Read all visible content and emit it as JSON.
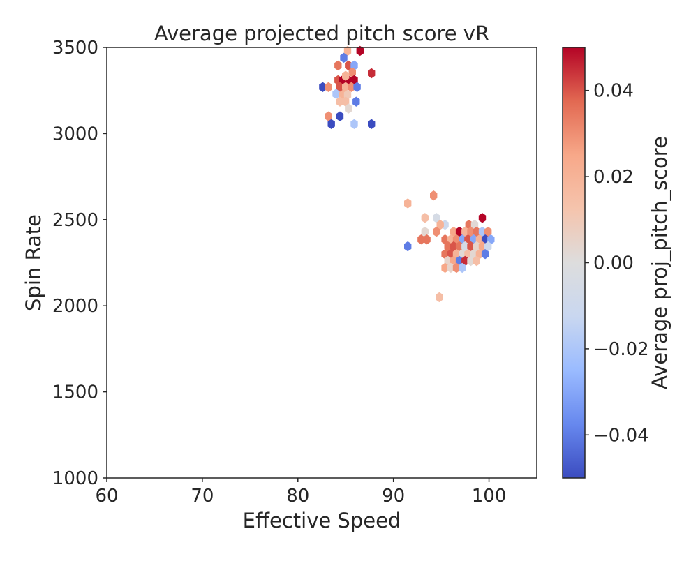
{
  "chart_data": {
    "type": "hexbin",
    "title": "Average projected pitch score vR",
    "xlabel": "Effective Speed",
    "ylabel": "Spin Rate",
    "xlim": [
      60,
      105
    ],
    "ylim": [
      1000,
      3500
    ],
    "xticks": [
      60,
      70,
      80,
      90,
      100
    ],
    "yticks": [
      1000,
      1500,
      2000,
      2500,
      3000,
      3500
    ],
    "grid": false,
    "colorbar": {
      "label": "Average proj_pitch_score",
      "colormap": "coolwarm",
      "range": [
        -0.05,
        0.05
      ],
      "ticks": [
        -0.04,
        -0.02,
        0.0,
        0.02,
        0.04
      ],
      "tick_labels": [
        "−0.04",
        "−0.02",
        "0.00",
        "0.02",
        "0.04"
      ],
      "colors": [
        "#3b4cc0",
        "#6788ee",
        "#9abbff",
        "#c9d7f0",
        "#dddddd",
        "#f5c4ad",
        "#f7a889",
        "#e26952",
        "#b40426"
      ]
    },
    "points": [
      {
        "x": 86.5,
        "y": 3480,
        "v": 0.05
      },
      {
        "x": 85.2,
        "y": 3480,
        "v": 0.02
      },
      {
        "x": 84.8,
        "y": 3440,
        "v": -0.04
      },
      {
        "x": 84.2,
        "y": 3395,
        "v": 0.035
      },
      {
        "x": 85.3,
        "y": 3395,
        "v": 0.04
      },
      {
        "x": 85.9,
        "y": 3395,
        "v": -0.03
      },
      {
        "x": 87.7,
        "y": 3350,
        "v": 0.045
      },
      {
        "x": 85.7,
        "y": 3355,
        "v": 0.03
      },
      {
        "x": 84.2,
        "y": 3310,
        "v": 0.04
      },
      {
        "x": 84.7,
        "y": 3310,
        "v": 0.05
      },
      {
        "x": 85.3,
        "y": 3310,
        "v": 0.05
      },
      {
        "x": 85.9,
        "y": 3310,
        "v": 0.05
      },
      {
        "x": 85.0,
        "y": 3335,
        "v": 0.02
      },
      {
        "x": 82.6,
        "y": 3270,
        "v": -0.05
      },
      {
        "x": 83.2,
        "y": 3270,
        "v": 0.03
      },
      {
        "x": 84.4,
        "y": 3270,
        "v": 0.04
      },
      {
        "x": 85.0,
        "y": 3270,
        "v": 0.02
      },
      {
        "x": 85.6,
        "y": 3270,
        "v": 0.03
      },
      {
        "x": 86.2,
        "y": 3270,
        "v": -0.04
      },
      {
        "x": 84.0,
        "y": 3230,
        "v": -0.02
      },
      {
        "x": 84.7,
        "y": 3225,
        "v": 0.02
      },
      {
        "x": 85.2,
        "y": 3225,
        "v": 0.01
      },
      {
        "x": 84.4,
        "y": 3185,
        "v": 0.015
      },
      {
        "x": 85.0,
        "y": 3185,
        "v": 0.015
      },
      {
        "x": 86.1,
        "y": 3185,
        "v": -0.04
      },
      {
        "x": 85.3,
        "y": 3145,
        "v": 0.003
      },
      {
        "x": 83.2,
        "y": 3100,
        "v": 0.03
      },
      {
        "x": 84.4,
        "y": 3100,
        "v": -0.05
      },
      {
        "x": 83.5,
        "y": 3055,
        "v": -0.05
      },
      {
        "x": 85.9,
        "y": 3055,
        "v": -0.02
      },
      {
        "x": 87.7,
        "y": 3055,
        "v": -0.05
      },
      {
        "x": 94.2,
        "y": 2640,
        "v": 0.03
      },
      {
        "x": 91.5,
        "y": 2595,
        "v": 0.02
      },
      {
        "x": 93.3,
        "y": 2510,
        "v": 0.015
      },
      {
        "x": 94.5,
        "y": 2510,
        "v": -0.005
      },
      {
        "x": 99.3,
        "y": 2510,
        "v": 0.05
      },
      {
        "x": 95.4,
        "y": 2470,
        "v": -0.01
      },
      {
        "x": 94.9,
        "y": 2470,
        "v": 0.02
      },
      {
        "x": 97.9,
        "y": 2470,
        "v": 0.035
      },
      {
        "x": 98.5,
        "y": 2470,
        "v": 0.002
      },
      {
        "x": 93.3,
        "y": 2430,
        "v": 0.003
      },
      {
        "x": 94.5,
        "y": 2430,
        "v": 0.03
      },
      {
        "x": 96.3,
        "y": 2430,
        "v": 0.025
      },
      {
        "x": 96.9,
        "y": 2430,
        "v": 0.05
      },
      {
        "x": 97.5,
        "y": 2430,
        "v": 0.02
      },
      {
        "x": 98.1,
        "y": 2430,
        "v": 0.03
      },
      {
        "x": 98.7,
        "y": 2430,
        "v": 0.035
      },
      {
        "x": 99.3,
        "y": 2430,
        "v": -0.02
      },
      {
        "x": 99.9,
        "y": 2430,
        "v": 0.03
      },
      {
        "x": 92.9,
        "y": 2385,
        "v": 0.035
      },
      {
        "x": 93.5,
        "y": 2385,
        "v": 0.035
      },
      {
        "x": 95.4,
        "y": 2385,
        "v": 0.035
      },
      {
        "x": 96.0,
        "y": 2385,
        "v": 0.02
      },
      {
        "x": 96.6,
        "y": 2385,
        "v": 0.03
      },
      {
        "x": 97.2,
        "y": 2385,
        "v": -0.03
      },
      {
        "x": 97.8,
        "y": 2385,
        "v": 0.04
      },
      {
        "x": 98.4,
        "y": 2385,
        "v": -0.03
      },
      {
        "x": 99.0,
        "y": 2385,
        "v": 0.02
      },
      {
        "x": 99.6,
        "y": 2385,
        "v": -0.05
      },
      {
        "x": 100.2,
        "y": 2385,
        "v": -0.03
      },
      {
        "x": 91.5,
        "y": 2345,
        "v": -0.04
      },
      {
        "x": 95.7,
        "y": 2345,
        "v": 0.035
      },
      {
        "x": 96.3,
        "y": 2345,
        "v": 0.04
      },
      {
        "x": 96.9,
        "y": 2345,
        "v": 0.035
      },
      {
        "x": 97.5,
        "y": 2345,
        "v": -0.005
      },
      {
        "x": 98.1,
        "y": 2345,
        "v": 0.04
      },
      {
        "x": 98.7,
        "y": 2345,
        "v": 0.005
      },
      {
        "x": 99.3,
        "y": 2345,
        "v": 0.025
      },
      {
        "x": 99.9,
        "y": 2345,
        "v": -0.01
      },
      {
        "x": 95.4,
        "y": 2300,
        "v": 0.035
      },
      {
        "x": 96.0,
        "y": 2300,
        "v": 0.04
      },
      {
        "x": 96.6,
        "y": 2300,
        "v": 0.02
      },
      {
        "x": 97.2,
        "y": 2300,
        "v": 0.002
      },
      {
        "x": 97.8,
        "y": 2300,
        "v": 0.015
      },
      {
        "x": 98.4,
        "y": 2300,
        "v": 0.003
      },
      {
        "x": 99.0,
        "y": 2300,
        "v": 0.02
      },
      {
        "x": 99.6,
        "y": 2300,
        "v": -0.04
      },
      {
        "x": 95.7,
        "y": 2260,
        "v": 0.005
      },
      {
        "x": 96.3,
        "y": 2260,
        "v": 0.025
      },
      {
        "x": 96.9,
        "y": 2260,
        "v": -0.04
      },
      {
        "x": 97.5,
        "y": 2260,
        "v": 0.045
      },
      {
        "x": 98.1,
        "y": 2260,
        "v": 0.002
      },
      {
        "x": 98.7,
        "y": 2260,
        "v": 0.015
      },
      {
        "x": 95.4,
        "y": 2220,
        "v": 0.025
      },
      {
        "x": 96.0,
        "y": 2220,
        "v": 0.005
      },
      {
        "x": 96.6,
        "y": 2220,
        "v": 0.03
      },
      {
        "x": 97.2,
        "y": 2220,
        "v": -0.02
      },
      {
        "x": 94.8,
        "y": 2050,
        "v": 0.015
      }
    ]
  }
}
